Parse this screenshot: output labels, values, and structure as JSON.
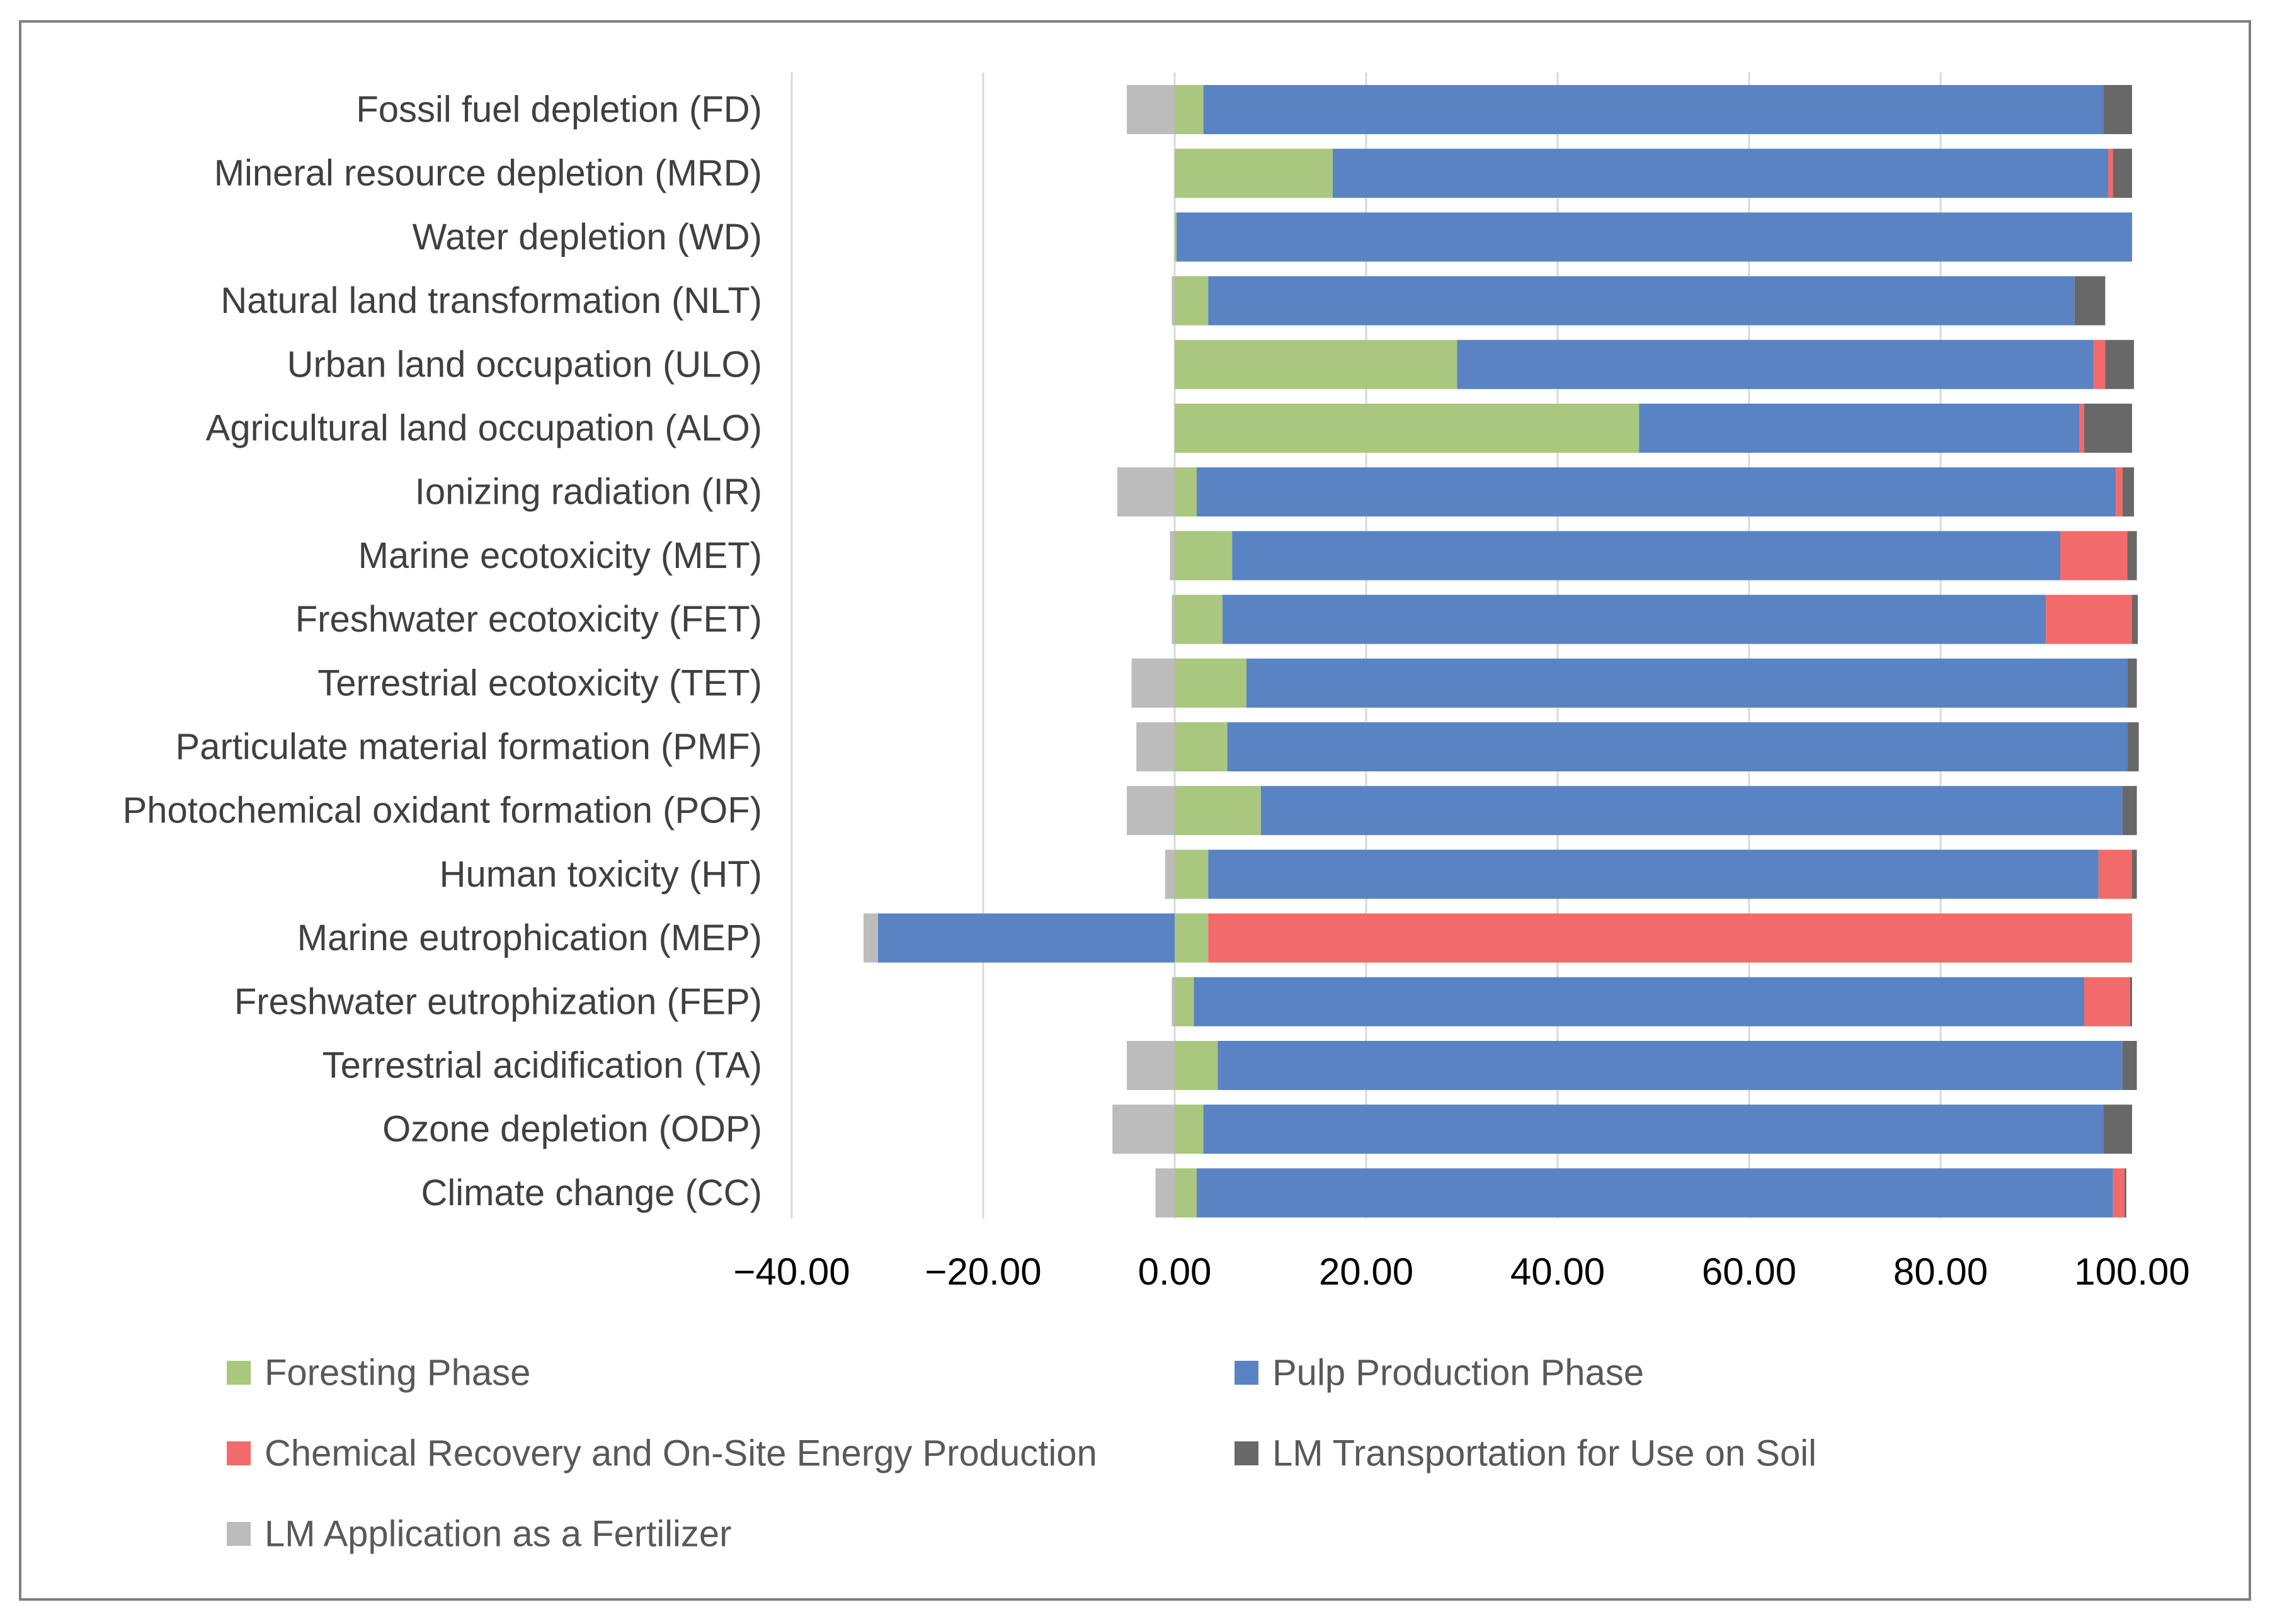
{
  "chart_data": {
    "type": "bar",
    "orientation": "horizontal",
    "stacked": true,
    "title": "",
    "xlabel": "",
    "ylabel": "",
    "xlim": [
      -40,
      100
    ],
    "x_ticks": [
      "-40.00",
      "-20.00",
      "0.00",
      "20.00",
      "40.00",
      "60.00",
      "80.00",
      "100.00"
    ],
    "x_tick_values": [
      -40,
      -20,
      0,
      20,
      40,
      60,
      80,
      100
    ],
    "grid": true,
    "legend_position": "bottom",
    "categories": [
      "Fossil fuel depletion (FD)",
      "Mineral resource depletion (MRD)",
      "Water depletion (WD)",
      "Natural land transformation (NLT)",
      "Urban land occupation (ULO)",
      "Agricultural land occupation (ALO)",
      "Ionizing radiation (IR)",
      "Marine ecotoxicity (MET)",
      "Freshwater ecotoxicity (FET)",
      "Terrestrial ecotoxicity (TET)",
      "Particulate material formation (PMF)",
      "Photochemical oxidant formation (POF)",
      "Human toxicity (HT)",
      "Marine eutrophication (MEP)",
      "Freshwater eutrophization (FEP)",
      "Terrestrial acidification (TA)",
      "Ozone depletion (ODP)",
      "Climate change (CC)"
    ],
    "series": [
      {
        "name": "Foresting Phase",
        "color": "#a9c77e",
        "values": [
          3,
          16.5,
          0.2,
          3.5,
          29.5,
          48.5,
          2.3,
          6,
          5,
          7.5,
          5.5,
          9,
          3.5,
          3.5,
          2,
          4.5,
          3,
          2.3
        ]
      },
      {
        "name": "Pulp Production Phase",
        "color": "#5a83c3",
        "values": [
          94,
          81,
          99.8,
          90.5,
          66.5,
          46,
          96,
          86.5,
          86,
          92,
          94,
          90,
          93,
          -31,
          93,
          94.5,
          94,
          95.7
        ]
      },
      {
        "name": "Chemical Recovery and On-Site Energy Production",
        "color": "#f26a6a",
        "values": [
          0,
          0.5,
          0,
          0,
          1.2,
          0.5,
          0.7,
          7,
          9,
          0,
          0,
          0,
          3.5,
          96.5,
          4.8,
          0,
          0,
          1.2
        ]
      },
      {
        "name": "LM Transportation for Use on Soil",
        "color": "#686868",
        "values": [
          3,
          2,
          0,
          3.2,
          3,
          5,
          1.2,
          1,
          0.6,
          1,
          1.2,
          1.5,
          0.5,
          0,
          0.2,
          1.5,
          3,
          0.2
        ]
      },
      {
        "name": "LM Application as a Fertilizer",
        "color": "#bcbcbc",
        "values": [
          -5,
          0,
          0,
          -0.3,
          0,
          0,
          -6,
          -0.5,
          -0.3,
          -4.5,
          -4,
          -5,
          -1,
          -1.5,
          -0.3,
          -5,
          -6.5,
          -2
        ]
      }
    ]
  }
}
